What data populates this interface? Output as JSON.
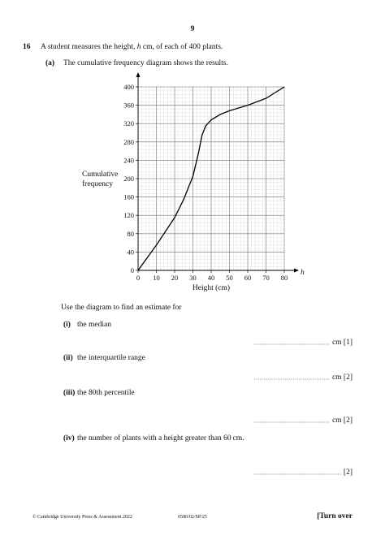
{
  "header": {
    "page_number": "9"
  },
  "question": {
    "number": "16",
    "text_before": "A student measures the height, ",
    "variable": "h",
    "text_after": " cm, of each of 400 plants."
  },
  "part_a": {
    "label": "(a)",
    "text": "The cumulative frequency diagram shows the results."
  },
  "chart_data": {
    "type": "line",
    "y_label": [
      "Cumulative",
      "frequency"
    ],
    "x_label": "Height (cm)",
    "x_variable": "h",
    "x": [
      0,
      10,
      20,
      25,
      30,
      33,
      35,
      37,
      40,
      45,
      50,
      60,
      70,
      80
    ],
    "series": [
      {
        "name": "Cumulative frequency",
        "color": "#000000",
        "values": [
          0,
          55,
          115,
          155,
          205,
          255,
          295,
          315,
          328,
          340,
          348,
          360,
          375,
          400
        ]
      }
    ],
    "xlim": [
      0,
      80
    ],
    "ylim": [
      0,
      400
    ],
    "xticks": [
      0,
      10,
      20,
      30,
      40,
      50,
      60,
      70,
      80
    ],
    "yticks": [
      0,
      40,
      80,
      120,
      160,
      200,
      240,
      280,
      320,
      360,
      400
    ],
    "grid": true
  },
  "instruction": "Use the diagram to find an estimate for",
  "items": [
    {
      "label": "(i)",
      "text": "the median",
      "answer": "cm [1]"
    },
    {
      "label": "(ii)",
      "text": "the interquartile range",
      "answer": "cm [2]"
    },
    {
      "label": "(iii)",
      "text": "the 80th percentile",
      "answer": "cm [2]"
    },
    {
      "label": "(iv)",
      "text": "the number of plants with a height greater than 60 cm.",
      "answer": "[2]"
    }
  ],
  "footer": {
    "copyright": "© Cambridge University Press & Assessment 2022",
    "code": "0580/02/SP/25",
    "turn": "[Turn over"
  }
}
